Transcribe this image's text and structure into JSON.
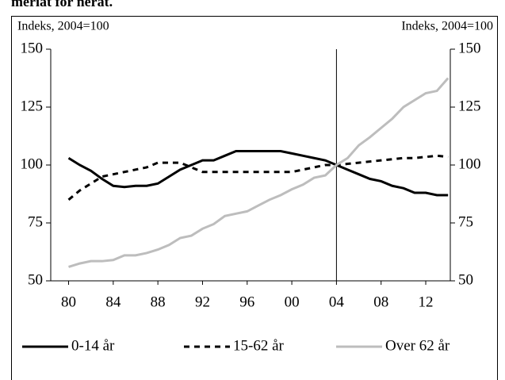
{
  "chart_data": {
    "type": "line",
    "title": "meriat for neràt.",
    "y_label": "Indeks, 2004=100",
    "y2_label": "Indeks, 2004=100",
    "x": [
      1980,
      1981,
      1982,
      1983,
      1984,
      1985,
      1986,
      1987,
      1988,
      1989,
      1990,
      1991,
      1992,
      1993,
      1994,
      1995,
      1996,
      1997,
      1998,
      1999,
      2000,
      2001,
      2002,
      2003,
      2004,
      2005,
      2006,
      2007,
      2008,
      2009,
      2010,
      2011,
      2012,
      2013,
      2014
    ],
    "xlim": [
      1978.4,
      2014.2
    ],
    "xticks": [
      {
        "value": 1980,
        "label": "80"
      },
      {
        "value": 1984,
        "label": "84"
      },
      {
        "value": 1988,
        "label": "88"
      },
      {
        "value": 1992,
        "label": "92"
      },
      {
        "value": 1996,
        "label": "96"
      },
      {
        "value": 2000,
        "label": "00"
      },
      {
        "value": 2004,
        "label": "04"
      },
      {
        "value": 2008,
        "label": "08"
      },
      {
        "value": 2012,
        "label": "12"
      }
    ],
    "ylim": [
      50,
      150
    ],
    "yticks": [
      50,
      75,
      100,
      125,
      150
    ],
    "y2lim": [
      50,
      150
    ],
    "y2ticks": [
      50,
      75,
      100,
      125,
      150
    ],
    "vline_x": 2004,
    "legend": "bottom",
    "series": [
      {
        "name": "0-14 år",
        "color": "#000000",
        "dash": "solid",
        "values": [
          103,
          100,
          97.5,
          94,
          91,
          90.5,
          91,
          91,
          92,
          95,
          98,
          100,
          102,
          102,
          104,
          106,
          106,
          106,
          106,
          106,
          105,
          104,
          103,
          102,
          100,
          98,
          96,
          94,
          93,
          91,
          90,
          88,
          88,
          87,
          87
        ]
      },
      {
        "name": "15-62 år",
        "color": "#000000",
        "dash": "dashed",
        "values": [
          85,
          89,
          92,
          95,
          96,
          97,
          98,
          99,
          101,
          101,
          101,
          99,
          97,
          97,
          97,
          97,
          97,
          97,
          97,
          97,
          97,
          98,
          99,
          100,
          100,
          100.5,
          101,
          101.5,
          102,
          102.5,
          103,
          103,
          103.5,
          104,
          103.5
        ]
      },
      {
        "name": "Over 62 år",
        "color": "#bdbdbd",
        "dash": "solid",
        "axis": "y2",
        "values": [
          56,
          57.5,
          58.5,
          58.5,
          59,
          61,
          61,
          62,
          63.5,
          65.5,
          68.5,
          69.5,
          72.5,
          74.5,
          78,
          79,
          80,
          82.5,
          85,
          87,
          89.5,
          91.5,
          94.5,
          95.5,
          100,
          103,
          108.5,
          112,
          116,
          120,
          125,
          128,
          131,
          132,
          137.5
        ]
      }
    ]
  }
}
